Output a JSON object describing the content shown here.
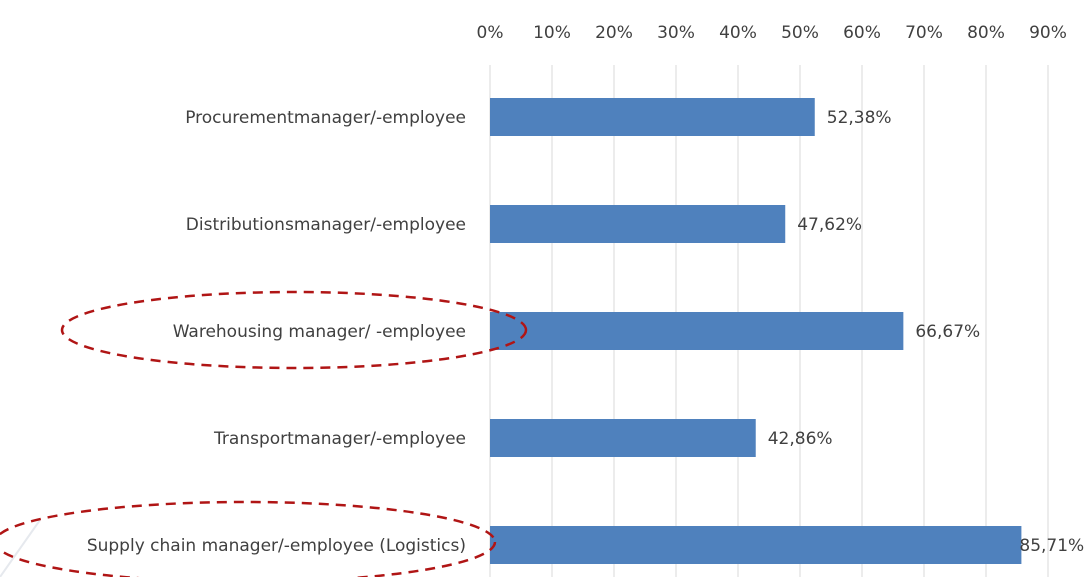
{
  "chart_data": {
    "type": "barh",
    "categories": [
      "Procurementmanager/-employee",
      "Distributionsmanager/-employee",
      "Warehousing manager/ -employee",
      "Transportmanager/-employee",
      "Supply chain manager/-employee (Logistics)"
    ],
    "values": [
      52.38,
      47.62,
      66.67,
      42.86,
      85.71
    ],
    "value_labels": [
      "52,38%",
      "47,62%",
      "66,67%",
      "42,86%",
      "85,71%"
    ],
    "color": "#4f81bd",
    "xlim": [
      0,
      90
    ],
    "xticks": [
      {
        "value": 0,
        "label": "0%"
      },
      {
        "value": 10,
        "label": "10%"
      },
      {
        "value": 20,
        "label": "20%"
      },
      {
        "value": 30,
        "label": "30%"
      },
      {
        "value": 40,
        "label": "40%"
      },
      {
        "value": 50,
        "label": "50%"
      },
      {
        "value": 60,
        "label": "60%"
      },
      {
        "value": 70,
        "label": "70%"
      },
      {
        "value": 80,
        "label": "80%"
      },
      {
        "value": 90,
        "label": "90%"
      }
    ],
    "grid": true
  }
}
